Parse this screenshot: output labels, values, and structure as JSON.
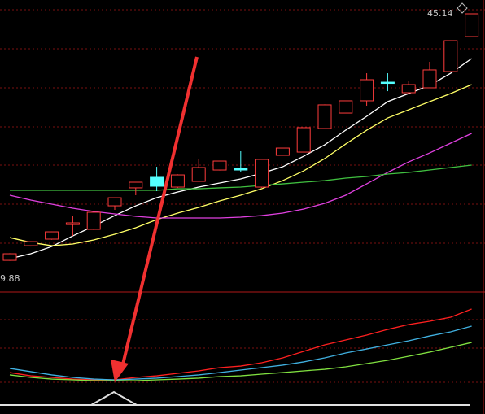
{
  "chart_data": [
    {
      "type": "candlestick",
      "ylim": [
        9.88,
        45.14
      ],
      "up_color": "#ff3c3c",
      "down_color": "#54ffff",
      "open": [
        12.36,
        14.31,
        15.18,
        17.12,
        16.48,
        19.61,
        22.0,
        23.4,
        22.1,
        22.86,
        24.37,
        24.59,
        22.1,
        26.32,
        26.75,
        29.89,
        31.94,
        33.57,
        36.05,
        34.65,
        35.3,
        37.46,
        42.11
      ],
      "close": [
        13.23,
        14.85,
        16.15,
        17.34,
        18.75,
        20.69,
        22.75,
        22.21,
        23.72,
        24.7,
        25.56,
        24.37,
        25.78,
        27.29,
        30.0,
        33.03,
        33.57,
        36.38,
        35.95,
        35.73,
        37.68,
        41.57,
        45.14
      ],
      "high": [
        13.3,
        14.9,
        16.2,
        18.31,
        18.8,
        20.7,
        22.8,
        24.8,
        23.8,
        25.78,
        25.6,
        26.86,
        25.8,
        27.3,
        30.0,
        33.1,
        33.6,
        37.24,
        37.24,
        36.16,
        38.76,
        41.6,
        45.14
      ],
      "low": [
        12.3,
        14.2,
        15.1,
        15.61,
        16.4,
        19.07,
        21.02,
        21.56,
        22.0,
        22.8,
        24.3,
        24.15,
        22.0,
        26.3,
        26.7,
        29.8,
        31.9,
        32.92,
        34.86,
        34.43,
        35.3,
        37.4,
        42.1
      ],
      "series": [
        {
          "color": "#ffffff",
          "values": [
            12.58,
            13.23,
            14.2,
            15.61,
            16.91,
            18.31,
            19.61,
            20.69,
            21.45,
            22.1,
            22.64,
            23.18,
            23.94,
            24.8,
            26.21,
            27.72,
            29.67,
            31.51,
            33.46,
            34.54,
            35.62,
            37.24,
            39.19
          ]
        },
        {
          "color": "#ffff66",
          "values": [
            15.39,
            14.74,
            14.31,
            14.53,
            15.07,
            15.83,
            16.69,
            17.78,
            18.64,
            19.4,
            20.26,
            21.02,
            21.88,
            22.96,
            24.26,
            25.89,
            27.83,
            29.67,
            31.29,
            32.38,
            33.46,
            34.54,
            35.73
          ]
        },
        {
          "color": "#e040e0",
          "values": [
            21.02,
            20.37,
            19.83,
            19.29,
            18.86,
            18.53,
            18.21,
            17.99,
            17.99,
            17.99,
            17.99,
            18.1,
            18.31,
            18.64,
            19.18,
            19.94,
            21.02,
            22.53,
            24.05,
            25.45,
            26.64,
            27.94,
            29.24
          ]
        },
        {
          "color": "#40c040",
          "values": [
            21.67,
            21.67,
            21.67,
            21.67,
            21.67,
            21.67,
            21.67,
            21.67,
            21.88,
            21.88,
            22.0,
            22.1,
            22.32,
            22.53,
            22.75,
            22.96,
            23.29,
            23.51,
            23.83,
            24.05,
            24.37,
            24.7,
            25.02
          ]
        }
      ]
    },
    {
      "type": "line",
      "ylim": [
        0,
        100
      ],
      "series": [
        {
          "color": "#ff2020",
          "values": [
            30.4,
            27.5,
            26.1,
            24.6,
            23.9,
            23.9,
            26.1,
            27.5,
            29.7,
            31.9,
            34.8,
            36.2,
            39.1,
            43.5,
            49.3,
            55.1,
            59.4,
            63.8,
            68.8,
            73.2,
            76.1,
            79.7,
            87.0
          ]
        },
        {
          "color": "#40b0e0",
          "values": [
            34.1,
            31.2,
            28.3,
            26.1,
            24.6,
            23.9,
            24.6,
            25.4,
            26.8,
            28.3,
            30.4,
            32.6,
            34.8,
            37.0,
            39.9,
            43.5,
            47.8,
            51.4,
            55.1,
            58.7,
            63.0,
            66.7,
            71.7
          ]
        },
        {
          "color": "#80e040",
          "values": [
            28.3,
            26.1,
            24.6,
            23.9,
            23.2,
            23.2,
            23.2,
            23.9,
            24.6,
            25.4,
            26.8,
            27.5,
            29.0,
            30.4,
            31.9,
            33.3,
            35.5,
            38.4,
            41.3,
            44.9,
            48.6,
            52.9,
            57.2
          ]
        }
      ]
    }
  ]
}
